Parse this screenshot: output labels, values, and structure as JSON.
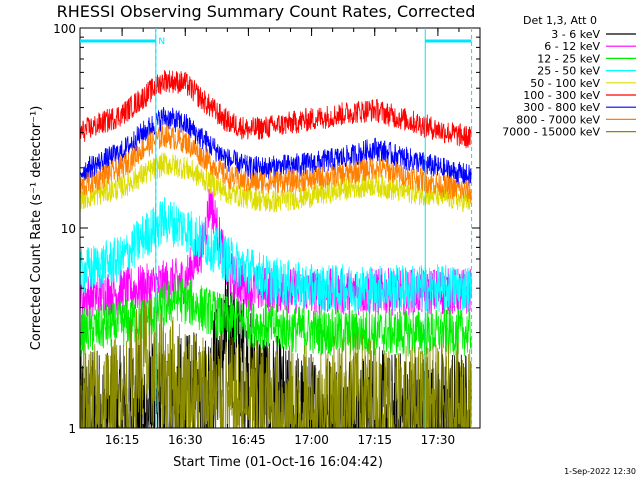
{
  "chart_data": {
    "type": "line",
    "title": "RHESSI Observing Summary Count Rates, Corrected",
    "xlabel": "Start Time (01-Oct-16 16:04:42)",
    "ylabel": "Corrected Count Rate (s⁻¹ detector⁻¹)",
    "y_scale": "log",
    "ylim": [
      1,
      100
    ],
    "xlim_minutes": [
      "16:05",
      "17:40"
    ],
    "x_ticks": [
      "16:15",
      "16:30",
      "16:45",
      "17:00",
      "17:15",
      "17:30"
    ],
    "y_ticks": [
      "1",
      "10",
      "100"
    ],
    "legend_title": "Det 1,3, Att 0",
    "legend_position": "right",
    "footer": "1-Sep-2022 12:30",
    "annotations": {
      "night_label": "N",
      "night_intervals": [
        [
          "16:05",
          "16:23"
        ],
        [
          "17:27",
          "17:38"
        ]
      ],
      "boundaries": [
        "16:23",
        "17:27"
      ]
    },
    "series": [
      {
        "name": "3 - 6 keV",
        "color": "#000000",
        "x": [
          "16:05",
          "16:20",
          "16:35",
          "16:40",
          "16:43",
          "16:45",
          "16:48",
          "16:52",
          "16:55",
          "17:05",
          "17:20",
          "17:30",
          "17:38"
        ],
        "values": [
          1.1,
          1.2,
          1.4,
          3.0,
          2.5,
          1.8,
          1.5,
          1.3,
          1.1,
          1.1,
          1.1,
          1.1,
          1.1
        ]
      },
      {
        "name": "6 - 12 keV",
        "color": "#ff00ff",
        "x": [
          "16:05",
          "16:20",
          "16:30",
          "16:34",
          "16:36",
          "16:38",
          "16:40",
          "16:45",
          "17:00",
          "17:20",
          "17:38"
        ],
        "values": [
          4.5,
          5.0,
          5.5,
          8.0,
          14.0,
          9.0,
          6.0,
          5.0,
          4.8,
          4.8,
          4.8
        ]
      },
      {
        "name": "12 - 25 keV",
        "color": "#00ee00",
        "x": [
          "16:05",
          "16:20",
          "16:28",
          "16:40",
          "16:50",
          "17:05",
          "17:20",
          "17:38"
        ],
        "values": [
          3.0,
          3.5,
          4.5,
          3.5,
          3.2,
          3.0,
          3.0,
          3.0
        ]
      },
      {
        "name": "25 - 50 keV",
        "color": "#00ffff",
        "x": [
          "16:05",
          "16:15",
          "16:20",
          "16:25",
          "16:30",
          "16:40",
          "16:50",
          "17:00",
          "17:20",
          "17:38"
        ],
        "values": [
          6.0,
          7.0,
          9.0,
          11.0,
          10.0,
          7.0,
          5.5,
          5.0,
          5.0,
          5.0
        ]
      },
      {
        "name": "50 - 100 keV",
        "color": "#dddd00",
        "x": [
          "16:05",
          "16:15",
          "16:20",
          "16:25",
          "16:30",
          "16:40",
          "16:50",
          "17:00",
          "17:10",
          "17:15",
          "17:20",
          "17:30",
          "17:38"
        ],
        "values": [
          14.0,
          16.0,
          18.5,
          21.0,
          20.0,
          15.0,
          13.5,
          14.5,
          16.0,
          16.5,
          15.5,
          14.5,
          13.5
        ]
      },
      {
        "name": "100 - 300 keV",
        "color": "#ff0000",
        "x": [
          "16:05",
          "16:15",
          "16:20",
          "16:25",
          "16:30",
          "16:35",
          "16:40",
          "16:45",
          "16:50",
          "17:00",
          "17:10",
          "17:15",
          "17:20",
          "17:30",
          "17:38"
        ],
        "values": [
          30.0,
          37.0,
          45.0,
          55.0,
          53.0,
          42.0,
          34.0,
          31.0,
          32.0,
          35.0,
          38.0,
          39.0,
          36.0,
          31.0,
          28.0
        ]
      },
      {
        "name": "300 - 800 keV",
        "color": "#0000ff",
        "x": [
          "16:05",
          "16:15",
          "16:20",
          "16:25",
          "16:30",
          "16:35",
          "16:40",
          "16:45",
          "16:50",
          "17:00",
          "17:10",
          "17:15",
          "17:20",
          "17:30",
          "17:38"
        ],
        "values": [
          19.0,
          24.0,
          30.0,
          36.0,
          33.0,
          27.0,
          22.0,
          20.0,
          20.0,
          21.0,
          23.0,
          25.0,
          23.0,
          20.0,
          18.0
        ]
      },
      {
        "name": "800 - 7000 keV",
        "color": "#ff7f00",
        "x": [
          "16:05",
          "16:15",
          "16:20",
          "16:25",
          "16:30",
          "16:35",
          "16:40",
          "16:45",
          "16:50",
          "17:00",
          "17:10",
          "17:15",
          "17:20",
          "17:30",
          "17:38"
        ],
        "values": [
          16.0,
          20.0,
          25.0,
          29.0,
          27.0,
          22.0,
          18.0,
          17.0,
          17.0,
          17.5,
          19.0,
          20.0,
          19.0,
          16.5,
          15.0
        ]
      },
      {
        "name": "7000 - 15000 keV",
        "color": "#8b8b00",
        "x": [
          "16:05",
          "16:15",
          "16:20",
          "16:25",
          "16:30",
          "16:40",
          "16:50",
          "17:00",
          "17:10",
          "17:20",
          "17:38"
        ],
        "values": [
          1.2,
          1.3,
          2.2,
          1.8,
          1.5,
          1.3,
          1.2,
          1.2,
          1.4,
          1.2,
          1.2
        ]
      }
    ]
  }
}
